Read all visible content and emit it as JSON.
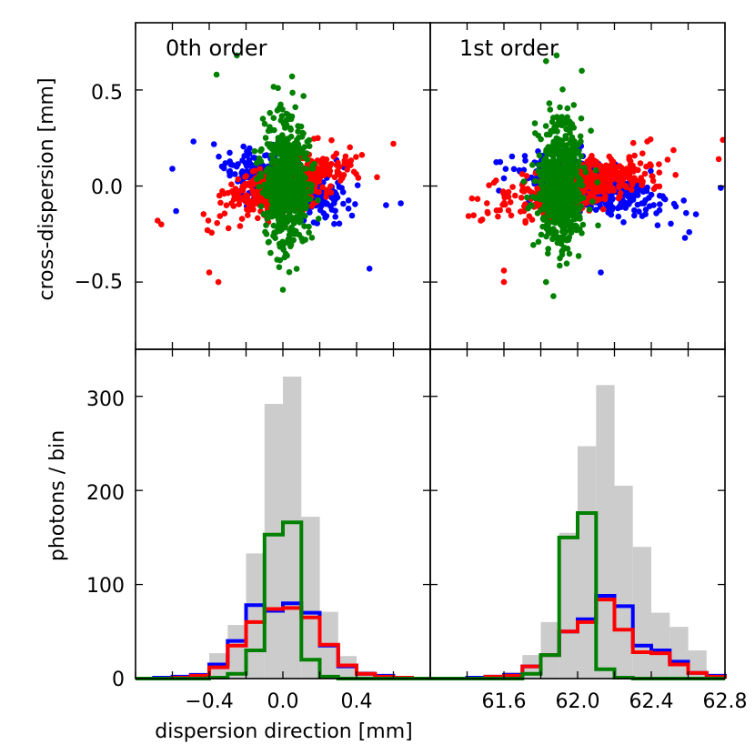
{
  "colors": {
    "blue": "#0000ff",
    "red": "#ff0000",
    "green": "#008000",
    "total": "#cccccc",
    "axis": "#000000"
  },
  "labels": {
    "ylabel_top": "cross-dispersion [mm]",
    "ylabel_bottom": "photons / bin",
    "xlabel": "dispersion direction [mm]",
    "title_left": "0th order",
    "title_right": "1st order"
  },
  "ticks": {
    "top_y": [
      "0.5",
      "0.0",
      "−0.5"
    ],
    "bottom_y": [
      "300",
      "200",
      "100",
      "0"
    ],
    "bottom_left_x": [
      "−0.4",
      "0.0",
      "0.4"
    ],
    "bottom_right_x": [
      "61.6",
      "62.0",
      "62.4",
      "62.8"
    ]
  },
  "chart_data": [
    {
      "id": "scatter-0th",
      "type": "scatter",
      "title": "0th order",
      "xlabel": "",
      "ylabel": "cross-dispersion [mm]",
      "xlim": [
        -0.8,
        0.8
      ],
      "ylim": [
        -0.85,
        0.85
      ],
      "series": [
        {
          "name": "blue",
          "color": "#0000ff",
          "center": [
            0.0,
            0.01
          ],
          "spread": [
            0.14,
            0.06
          ],
          "tilt": -0.28,
          "n": 500,
          "seed": 11,
          "extremes": [
            [
              -0.6,
              0.09
            ],
            [
              -0.58,
              -0.13
            ],
            [
              0.64,
              -0.09
            ],
            [
              0.56,
              -0.1
            ],
            [
              0.47,
              -0.43
            ]
          ]
        },
        {
          "name": "red",
          "color": "#ff0000",
          "center": [
            0.0,
            0.0
          ],
          "spread": [
            0.15,
            0.06
          ],
          "tilt": 0.28,
          "n": 500,
          "seed": 23,
          "extremes": [
            [
              -0.66,
              -0.2
            ],
            [
              -0.4,
              -0.45
            ],
            [
              -0.35,
              -0.5
            ],
            [
              0.6,
              0.22
            ],
            [
              -0.68,
              -0.18
            ]
          ]
        },
        {
          "name": "green",
          "color": "#008000",
          "center": [
            0.02,
            0.02
          ],
          "spread": [
            0.06,
            0.16
          ],
          "tilt": 0.0,
          "n": 650,
          "seed": 37,
          "extremes": [
            [
              -0.36,
              0.58
            ],
            [
              -0.25,
              0.68
            ],
            [
              0.0,
              -0.54
            ],
            [
              0.05,
              0.57
            ]
          ]
        }
      ]
    },
    {
      "id": "scatter-1st",
      "type": "scatter",
      "title": "1st order",
      "xlabel": "",
      "ylabel": "",
      "xlim": [
        61.4,
        62.8
      ],
      "ylim": [
        -0.85,
        0.85
      ],
      "series": [
        {
          "name": "blue",
          "color": "#0000ff",
          "center": [
            62.15,
            0.0
          ],
          "spread": [
            0.16,
            0.06
          ],
          "tilt": -0.27,
          "n": 500,
          "seed": 51,
          "extremes": [
            [
              62.78,
              -0.01
            ],
            [
              62.63,
              -0.24
            ],
            [
              62.61,
              -0.27
            ],
            [
              61.75,
              0.04
            ],
            [
              62.21,
              -0.45
            ]
          ]
        },
        {
          "name": "red",
          "color": "#ff0000",
          "center": [
            62.12,
            0.0
          ],
          "spread": [
            0.17,
            0.06
          ],
          "tilt": 0.27,
          "n": 500,
          "seed": 63,
          "extremes": [
            [
              61.64,
              -0.18
            ],
            [
              61.75,
              -0.5
            ],
            [
              62.77,
              0.14
            ],
            [
              62.79,
              0.24
            ],
            [
              61.75,
              -0.44
            ]
          ]
        },
        {
          "name": "green",
          "color": "#008000",
          "center": [
            62.02,
            0.0
          ],
          "spread": [
            0.05,
            0.17
          ],
          "tilt": 0.0,
          "n": 650,
          "seed": 77,
          "extremes": [
            [
              61.95,
              0.65
            ],
            [
              62.12,
              0.6
            ],
            [
              62.0,
              0.68
            ],
            [
              61.95,
              -0.5
            ]
          ]
        }
      ]
    },
    {
      "id": "hist-0th",
      "type": "bar",
      "xlabel": "dispersion direction [mm]",
      "ylabel": "photons / bin",
      "xlim": [
        -0.8,
        0.8
      ],
      "ylim": [
        0,
        350
      ],
      "bin_edges": [
        -0.8,
        -0.7,
        -0.6,
        -0.5,
        -0.4,
        -0.3,
        -0.2,
        -0.1,
        0.0,
        0.1,
        0.2,
        0.3,
        0.4,
        0.5,
        0.6,
        0.7,
        0.8
      ],
      "series": [
        {
          "name": "total",
          "color": "#cccccc",
          "filled": true,
          "values": [
            0,
            1,
            2,
            5,
            27,
            57,
            133,
            292,
            321,
            172,
            71,
            24,
            8,
            3,
            1,
            0
          ]
        },
        {
          "name": "blue",
          "color": "#0000ff",
          "values": [
            0,
            1,
            2,
            4,
            15,
            40,
            78,
            72,
            80,
            70,
            35,
            13,
            5,
            3,
            1,
            0
          ]
        },
        {
          "name": "red",
          "color": "#ff0000",
          "values": [
            0,
            0,
            1,
            3,
            12,
            35,
            60,
            74,
            75,
            65,
            36,
            14,
            5,
            2,
            1,
            0
          ]
        },
        {
          "name": "green",
          "color": "#008000",
          "values": [
            0,
            0,
            0,
            0,
            1,
            5,
            30,
            153,
            166,
            20,
            2,
            0,
            0,
            0,
            0,
            0
          ]
        }
      ]
    },
    {
      "id": "hist-1st",
      "type": "bar",
      "xlabel": "dispersion direction [mm]",
      "ylabel": "",
      "xlim": [
        61.2,
        62.8
      ],
      "ylim": [
        0,
        350
      ],
      "bin_edges": [
        61.2,
        61.3,
        61.4,
        61.5,
        61.6,
        61.7,
        61.8,
        61.9,
        62.0,
        62.1,
        62.2,
        62.3,
        62.4,
        62.5,
        62.6,
        62.7,
        62.8
      ],
      "series": [
        {
          "name": "total",
          "color": "#cccccc",
          "filled": true,
          "values": [
            0,
            0,
            1,
            2,
            7,
            25,
            60,
            155,
            247,
            312,
            205,
            140,
            70,
            55,
            30,
            5
          ]
        },
        {
          "name": "blue",
          "color": "#0000ff",
          "values": [
            0,
            0,
            1,
            2,
            4,
            13,
            25,
            50,
            63,
            88,
            77,
            35,
            30,
            18,
            6,
            3
          ]
        },
        {
          "name": "red",
          "color": "#ff0000",
          "values": [
            0,
            0,
            0,
            2,
            3,
            13,
            25,
            50,
            60,
            84,
            52,
            28,
            27,
            15,
            6,
            2
          ]
        },
        {
          "name": "green",
          "color": "#008000",
          "values": [
            0,
            0,
            0,
            0,
            0,
            5,
            25,
            150,
            176,
            10,
            1,
            0,
            0,
            0,
            0,
            0
          ]
        }
      ]
    }
  ]
}
